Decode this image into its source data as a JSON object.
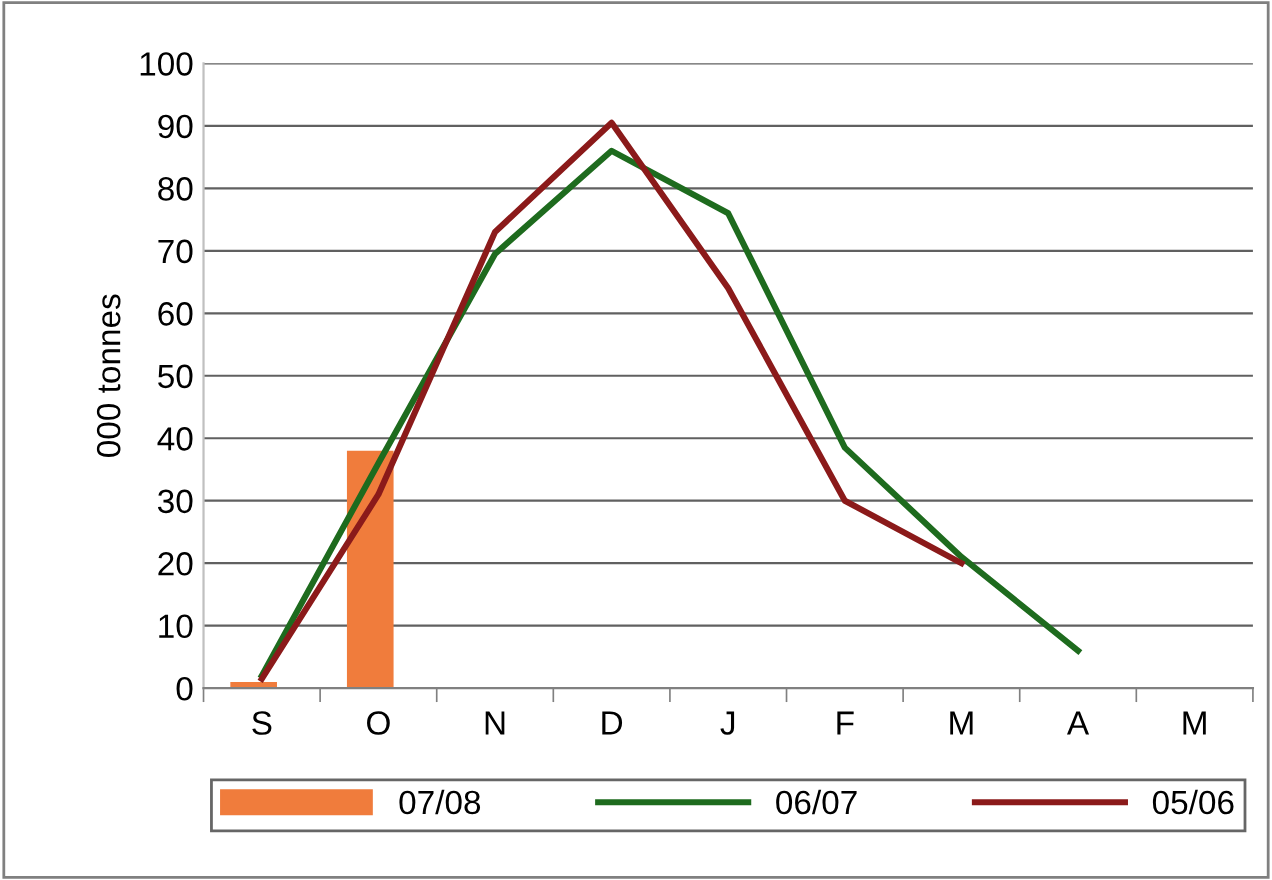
{
  "chart_data": {
    "type": "bar",
    "ylabel": "000 tonnes",
    "categories": [
      "S",
      "O",
      "N",
      "D",
      "J",
      "F",
      "M",
      "A",
      "M"
    ],
    "series": [
      {
        "name": "07/08",
        "color": "#f07c3c",
        "values": [
          1,
          38,
          null,
          null,
          null,
          null,
          null,
          null,
          null
        ]
      },
      {
        "name": "06/07",
        "type": "line",
        "color": "#1e6b1e",
        "values": [
          2,
          36,
          69.5,
          86,
          76,
          38.5,
          21,
          6,
          null
        ]
      },
      {
        "name": "05/06",
        "type": "line",
        "color": "#8b1a1a",
        "values": [
          1.5,
          31,
          73,
          90.5,
          64,
          30,
          20,
          null,
          null
        ]
      }
    ],
    "ylim": [
      0,
      100
    ],
    "yticks": [
      0,
      10,
      20,
      30,
      40,
      50,
      60,
      70,
      80,
      90,
      100
    ],
    "grid": "y",
    "legend": "bottom",
    "marker": "none",
    "line_style": "solid"
  }
}
